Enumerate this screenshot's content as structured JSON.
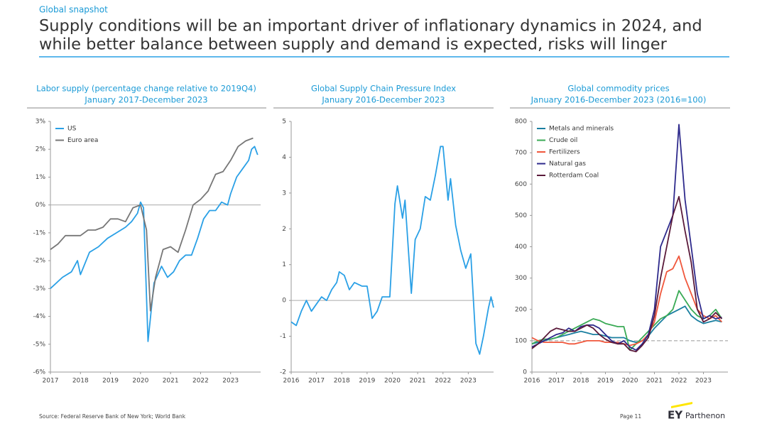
{
  "header": {
    "section": "Global snapshot",
    "title": [
      "Supply conditions will be an important driver of inflationary dynamics in 2024, and",
      "while better balance between supply and demand is expected, risks will linger"
    ]
  },
  "chart_data": [
    {
      "type": "line",
      "title": "Labor supply (percentage change relative to 2019Q4)",
      "subtitle": "January 2017-December 2023",
      "xlim": [
        2017,
        2024
      ],
      "xticks": [
        2017,
        2018,
        2019,
        2020,
        2021,
        2022,
        2023
      ],
      "ylim": [
        -6,
        3
      ],
      "yticks": [
        {
          "value": -6,
          "label": "-6%"
        },
        {
          "value": -5,
          "label": "-5%"
        },
        {
          "value": -4,
          "label": "-4%"
        },
        {
          "value": -3,
          "label": "-3%"
        },
        {
          "value": -2,
          "label": "-2%"
        },
        {
          "value": -1,
          "label": "-1%"
        },
        {
          "value": 0,
          "label": "0%"
        },
        {
          "value": 1,
          "label": "1%"
        },
        {
          "value": 2,
          "label": "2%"
        },
        {
          "value": 3,
          "label": "3%"
        }
      ],
      "zero_line": true,
      "legend": "upper left",
      "series": [
        {
          "name": "US",
          "color": "#2aa0e6",
          "x": [
            2017.0,
            2017.4,
            2017.7,
            2017.9,
            2018.0,
            2018.3,
            2018.6,
            2018.9,
            2019.2,
            2019.5,
            2019.7,
            2019.9,
            2020.0,
            2020.1,
            2020.25,
            2020.45,
            2020.7,
            2020.9,
            2021.1,
            2021.3,
            2021.5,
            2021.7,
            2021.9,
            2022.1,
            2022.3,
            2022.5,
            2022.7,
            2022.9,
            2023.0,
            2023.2,
            2023.4,
            2023.6,
            2023.7,
            2023.8,
            2023.9
          ],
          "values": [
            -3.0,
            -2.6,
            -2.4,
            -2.0,
            -2.5,
            -1.7,
            -1.5,
            -1.2,
            -1.0,
            -0.8,
            -0.6,
            -0.3,
            0.1,
            -0.1,
            -4.9,
            -2.8,
            -2.2,
            -2.6,
            -2.4,
            -2.0,
            -1.8,
            -1.8,
            -1.2,
            -0.5,
            -0.2,
            -0.2,
            0.1,
            0.0,
            0.4,
            1.0,
            1.3,
            1.6,
            2.0,
            2.1,
            1.8
          ]
        },
        {
          "name": "Euro area",
          "color": "#777777",
          "x": [
            2017.0,
            2017.25,
            2017.5,
            2017.75,
            2018.0,
            2018.25,
            2018.5,
            2018.75,
            2019.0,
            2019.25,
            2019.5,
            2019.75,
            2020.0,
            2020.2,
            2020.33,
            2020.5,
            2020.75,
            2021.0,
            2021.25,
            2021.5,
            2021.75,
            2022.0,
            2022.25,
            2022.5,
            2022.75,
            2023.0,
            2023.25,
            2023.5,
            2023.75
          ],
          "values": [
            -1.6,
            -1.4,
            -1.1,
            -1.1,
            -1.1,
            -0.9,
            -0.9,
            -0.8,
            -0.5,
            -0.5,
            -0.6,
            -0.1,
            0.0,
            -0.9,
            -3.8,
            -2.6,
            -1.6,
            -1.5,
            -1.7,
            -0.9,
            0.0,
            0.2,
            0.5,
            1.1,
            1.2,
            1.6,
            2.1,
            2.3,
            2.4
          ]
        }
      ]
    },
    {
      "type": "line",
      "title": "Global Supply Chain Pressure Index",
      "subtitle": "January 2016-December 2023",
      "xlim": [
        2016,
        2024
      ],
      "xticks": [
        2016,
        2017,
        2018,
        2019,
        2020,
        2021,
        2022,
        2023
      ],
      "ylim": [
        -2,
        5
      ],
      "yticks": [
        -2,
        -1,
        0,
        1,
        2,
        3,
        4,
        5
      ],
      "zero_line": true,
      "series": [
        {
          "color": "#2aa0e6",
          "x": [
            2016.0,
            2016.2,
            2016.4,
            2016.6,
            2016.8,
            2017.0,
            2017.2,
            2017.4,
            2017.6,
            2017.8,
            2017.9,
            2018.1,
            2018.3,
            2018.5,
            2018.8,
            2019.0,
            2019.2,
            2019.4,
            2019.6,
            2019.9,
            2020.1,
            2020.2,
            2020.4,
            2020.5,
            2020.75,
            2020.9,
            2021.1,
            2021.3,
            2021.5,
            2021.7,
            2021.9,
            2022.0,
            2022.2,
            2022.3,
            2022.5,
            2022.7,
            2022.9,
            2023.1,
            2023.3,
            2023.45,
            2023.6,
            2023.8,
            2023.9,
            2024.0
          ],
          "values": [
            -0.6,
            -0.7,
            -0.3,
            0.0,
            -0.3,
            -0.1,
            0.1,
            0.0,
            0.3,
            0.5,
            0.8,
            0.7,
            0.3,
            0.5,
            0.4,
            0.4,
            -0.5,
            -0.3,
            0.1,
            0.1,
            2.7,
            3.2,
            2.3,
            2.8,
            0.2,
            1.7,
            2.0,
            2.9,
            2.8,
            3.5,
            4.3,
            4.3,
            2.8,
            3.4,
            2.1,
            1.4,
            0.9,
            1.3,
            -1.2,
            -1.5,
            -1.0,
            -0.2,
            0.1,
            -0.2
          ]
        }
      ]
    },
    {
      "type": "line",
      "title": "Global commodity prices",
      "subtitle": "January 2016-December 2023 (2016=100)",
      "xlim": [
        2016,
        2024
      ],
      "xticks": [
        2016,
        2017,
        2018,
        2019,
        2020,
        2021,
        2022,
        2023
      ],
      "ylim": [
        0,
        800
      ],
      "yticks": [
        0,
        100,
        200,
        300,
        400,
        500,
        600,
        700,
        800
      ],
      "reference_line": 100,
      "legend": "upper left",
      "x": [
        2016.0,
        2016.25,
        2016.5,
        2016.75,
        2017.0,
        2017.25,
        2017.5,
        2017.75,
        2018.0,
        2018.25,
        2018.5,
        2018.75,
        2019.0,
        2019.25,
        2019.5,
        2019.75,
        2020.0,
        2020.25,
        2020.5,
        2020.75,
        2021.0,
        2021.25,
        2021.5,
        2021.75,
        2022.0,
        2022.25,
        2022.5,
        2022.75,
        2023.0,
        2023.25,
        2023.5,
        2023.75
      ],
      "series": [
        {
          "name": "Metals and minerals",
          "color": "#1a7fa0",
          "values": [
            90,
            95,
            100,
            105,
            110,
            115,
            120,
            125,
            130,
            125,
            120,
            120,
            115,
            110,
            110,
            110,
            100,
            95,
            100,
            115,
            140,
            160,
            180,
            190,
            200,
            210,
            180,
            165,
            155,
            160,
            165,
            160
          ]
        },
        {
          "name": "Crude oil",
          "color": "#3aaa55",
          "values": [
            90,
            100,
            105,
            105,
            110,
            120,
            130,
            140,
            150,
            160,
            170,
            165,
            155,
            150,
            145,
            145,
            70,
            90,
            110,
            130,
            150,
            170,
            180,
            200,
            260,
            230,
            200,
            180,
            170,
            180,
            200,
            170
          ]
        },
        {
          "name": "Fertilizers",
          "color": "#f0573c",
          "values": [
            110,
            100,
            95,
            95,
            95,
            95,
            90,
            90,
            95,
            100,
            100,
            100,
            95,
            95,
            95,
            90,
            85,
            90,
            100,
            120,
            160,
            250,
            320,
            330,
            370,
            300,
            250,
            200,
            180,
            170,
            180,
            160
          ]
        },
        {
          "name": "Natural gas",
          "color": "#2e2a8c",
          "values": [
            80,
            90,
            100,
            110,
            120,
            125,
            140,
            130,
            145,
            150,
            150,
            140,
            120,
            100,
            90,
            100,
            80,
            70,
            90,
            120,
            200,
            400,
            450,
            500,
            790,
            550,
            400,
            250,
            170,
            180,
            170,
            175
          ]
        },
        {
          "name": "Rotterdam Coal",
          "color": "#5a1a3a",
          "values": [
            75,
            90,
            110,
            130,
            140,
            135,
            130,
            130,
            140,
            150,
            140,
            120,
            105,
            95,
            90,
            90,
            70,
            65,
            85,
            110,
            180,
            300,
            400,
            500,
            560,
            450,
            350,
            200,
            160,
            170,
            190,
            170
          ]
        }
      ]
    }
  ],
  "footer": {
    "source": "Source: Federal Reserve Bank of New York; World Bank",
    "page": "Page 11",
    "logo_mark": "EY",
    "logo_text": "Parthenon"
  }
}
